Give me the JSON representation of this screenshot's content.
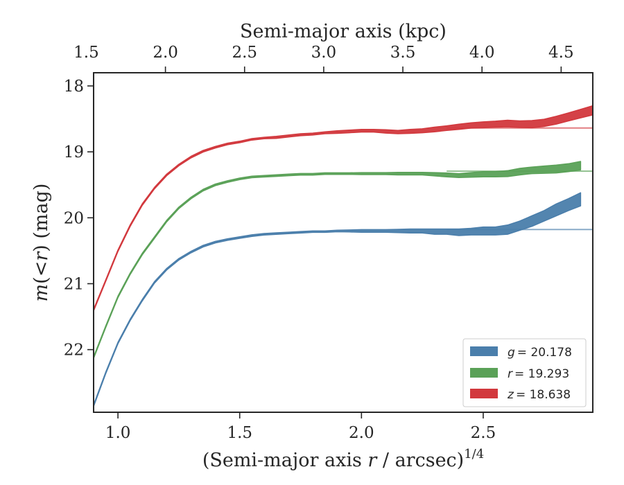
{
  "chart_data": {
    "type": "area",
    "xlabel_main": "(Semi-major axis ",
    "xlabel_var": "r",
    "xlabel_tail": " / arcsec)",
    "xlabel_exp": "1/4",
    "xlabel_top": "Semi-major axis (kpc)",
    "ylabel_var1": "m",
    "ylabel_paren": "(<",
    "ylabel_var2": "r",
    "ylabel_tail": ") (mag)",
    "xlim": [
      0.9,
      2.95
    ],
    "ylim": [
      22.95,
      17.8
    ],
    "y_inverted": true,
    "xticks": [
      1.0,
      1.5,
      2.0,
      2.5
    ],
    "xtick_labels": [
      "1.0",
      "1.5",
      "2.0",
      "2.5"
    ],
    "yticks": [
      18,
      19,
      20,
      21,
      22
    ],
    "ytick_labels": [
      "18",
      "19",
      "20",
      "21",
      "22"
    ],
    "top_xticks_kpc": [
      1.5,
      2.0,
      2.5,
      3.0,
      3.5,
      4.0,
      4.5
    ],
    "top_xtick_labels": [
      "1.5",
      "2.0",
      "2.5",
      "3.0",
      "3.5",
      "4.0",
      "4.5"
    ],
    "top_xtick_positions_data": [
      0.87,
      1.195,
      1.52,
      1.845,
      2.17,
      2.495,
      2.82
    ],
    "grid": false,
    "legend_position": "lower-right",
    "series": [
      {
        "name": "g = 20.178",
        "legend_var": "g",
        "legend_value": "= 20.178",
        "color": "#4a7eab",
        "total": 20.178,
        "x": [
          0.9,
          0.95,
          1.0,
          1.05,
          1.1,
          1.15,
          1.2,
          1.25,
          1.3,
          1.35,
          1.4,
          1.45,
          1.5,
          1.55,
          1.6,
          1.65,
          1.7,
          1.75,
          1.8,
          1.85,
          1.9,
          1.95,
          2.0,
          2.05,
          2.1,
          2.15,
          2.2,
          2.25,
          2.3,
          2.35,
          2.4,
          2.45,
          2.5,
          2.55,
          2.6,
          2.65,
          2.7,
          2.75,
          2.8,
          2.85,
          2.9
        ],
        "y": [
          22.85,
          22.35,
          21.9,
          21.55,
          21.25,
          20.98,
          20.78,
          20.63,
          20.52,
          20.43,
          20.37,
          20.33,
          20.3,
          20.27,
          20.25,
          20.24,
          20.23,
          20.22,
          20.21,
          20.21,
          20.2,
          20.2,
          20.2,
          20.2,
          20.2,
          20.2,
          20.2,
          20.2,
          20.21,
          20.21,
          20.22,
          20.21,
          20.2,
          20.2,
          20.18,
          20.12,
          20.05,
          19.97,
          19.88,
          19.8,
          19.72
        ],
        "err": [
          0.01,
          0.01,
          0.01,
          0.01,
          0.01,
          0.01,
          0.01,
          0.01,
          0.01,
          0.01,
          0.01,
          0.01,
          0.01,
          0.01,
          0.01,
          0.01,
          0.01,
          0.01,
          0.01,
          0.01,
          0.01,
          0.015,
          0.02,
          0.02,
          0.02,
          0.025,
          0.03,
          0.03,
          0.04,
          0.04,
          0.05,
          0.05,
          0.06,
          0.06,
          0.07,
          0.07,
          0.08,
          0.08,
          0.09,
          0.09,
          0.1
        ]
      },
      {
        "name": "r = 19.293",
        "legend_var": "r",
        "legend_value": "= 19.293",
        "color": "#5aa157",
        "total": 19.293,
        "x": [
          0.9,
          0.95,
          1.0,
          1.05,
          1.1,
          1.15,
          1.2,
          1.25,
          1.3,
          1.35,
          1.4,
          1.45,
          1.5,
          1.55,
          1.6,
          1.65,
          1.7,
          1.75,
          1.8,
          1.85,
          1.9,
          1.95,
          2.0,
          2.05,
          2.1,
          2.15,
          2.2,
          2.25,
          2.3,
          2.35,
          2.4,
          2.45,
          2.5,
          2.55,
          2.6,
          2.65,
          2.7,
          2.75,
          2.8,
          2.85,
          2.9
        ],
        "y": [
          22.12,
          21.65,
          21.2,
          20.85,
          20.55,
          20.3,
          20.05,
          19.85,
          19.7,
          19.58,
          19.5,
          19.45,
          19.41,
          19.38,
          19.37,
          19.36,
          19.35,
          19.34,
          19.34,
          19.33,
          19.33,
          19.33,
          19.33,
          19.33,
          19.33,
          19.33,
          19.33,
          19.33,
          19.34,
          19.35,
          19.36,
          19.35,
          19.34,
          19.34,
          19.33,
          19.3,
          19.28,
          19.27,
          19.26,
          19.24,
          19.21
        ],
        "err": [
          0.01,
          0.01,
          0.01,
          0.01,
          0.01,
          0.01,
          0.01,
          0.01,
          0.01,
          0.01,
          0.01,
          0.01,
          0.01,
          0.01,
          0.01,
          0.01,
          0.01,
          0.01,
          0.01,
          0.01,
          0.01,
          0.01,
          0.015,
          0.015,
          0.015,
          0.02,
          0.02,
          0.02,
          0.025,
          0.03,
          0.03,
          0.035,
          0.04,
          0.04,
          0.045,
          0.05,
          0.05,
          0.055,
          0.06,
          0.06,
          0.065
        ]
      },
      {
        "name": "z = 18.638",
        "legend_var": "z",
        "legend_value": "= 18.638",
        "color": "#d2383d",
        "total": 18.638,
        "x": [
          0.9,
          0.95,
          1.0,
          1.05,
          1.1,
          1.15,
          1.2,
          1.25,
          1.3,
          1.35,
          1.4,
          1.45,
          1.5,
          1.55,
          1.6,
          1.65,
          1.7,
          1.75,
          1.8,
          1.85,
          1.9,
          1.95,
          2.0,
          2.05,
          2.1,
          2.15,
          2.2,
          2.25,
          2.3,
          2.35,
          2.4,
          2.45,
          2.5,
          2.55,
          2.6,
          2.65,
          2.7,
          2.75,
          2.8,
          2.85,
          2.9,
          2.95
        ],
        "y": [
          21.4,
          20.95,
          20.5,
          20.12,
          19.8,
          19.55,
          19.35,
          19.2,
          19.08,
          18.99,
          18.93,
          18.88,
          18.85,
          18.81,
          18.79,
          18.78,
          18.76,
          18.74,
          18.73,
          18.71,
          18.7,
          18.69,
          18.68,
          18.68,
          18.69,
          18.7,
          18.69,
          18.68,
          18.66,
          18.64,
          18.62,
          18.6,
          18.59,
          18.58,
          18.57,
          18.58,
          18.58,
          18.56,
          18.52,
          18.47,
          18.42,
          18.37
        ],
        "err": [
          0.01,
          0.01,
          0.01,
          0.01,
          0.01,
          0.01,
          0.01,
          0.01,
          0.01,
          0.01,
          0.01,
          0.01,
          0.01,
          0.01,
          0.01,
          0.015,
          0.015,
          0.015,
          0.015,
          0.015,
          0.02,
          0.02,
          0.02,
          0.02,
          0.025,
          0.025,
          0.03,
          0.03,
          0.035,
          0.035,
          0.04,
          0.04,
          0.045,
          0.045,
          0.05,
          0.05,
          0.055,
          0.055,
          0.06,
          0.06,
          0.065,
          0.07
        ]
      }
    ]
  }
}
